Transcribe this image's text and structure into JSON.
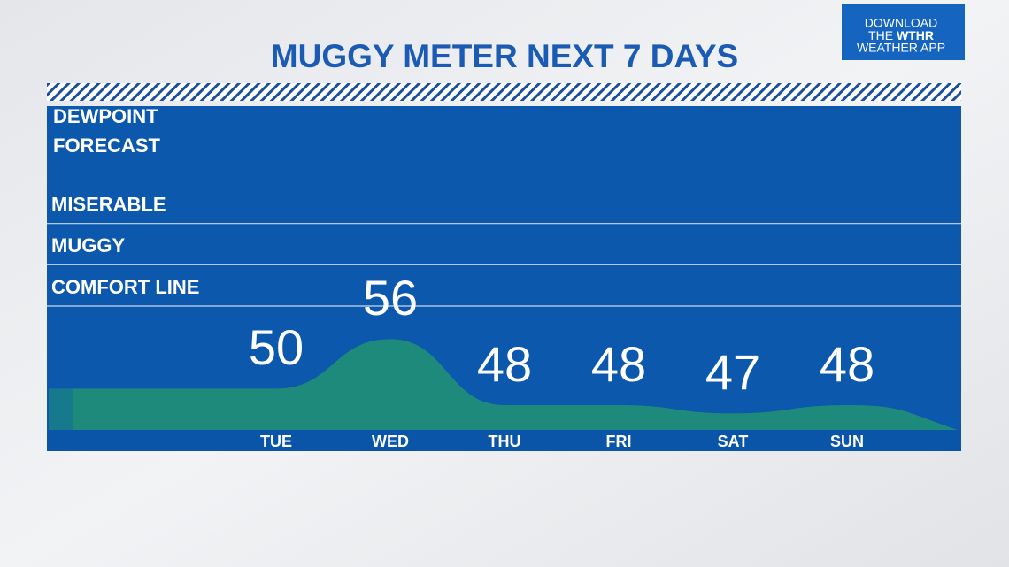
{
  "chart_data": {
    "type": "area",
    "title": "MUGGY METER NEXT 7 DAYS",
    "panel_label": [
      "DEWPOINT",
      "FORECAST"
    ],
    "categories": [
      "TUE",
      "WED",
      "THU",
      "FRI",
      "SAT",
      "SUN"
    ],
    "values": [
      50,
      56,
      48,
      48,
      47,
      48
    ],
    "color": "#1e8a7b",
    "ylim": [
      45,
      84
    ],
    "thresholds": [
      {
        "label": "MISERABLE",
        "value": 70
      },
      {
        "label": "MUGGY",
        "value": 65
      },
      {
        "label": "COMFORT LINE",
        "value": 60
      }
    ]
  },
  "badge": {
    "line1": "DOWNLOAD",
    "line2_prefix": "THE",
    "line2_bold": "WTHR",
    "line3": "WEATHER APP"
  }
}
